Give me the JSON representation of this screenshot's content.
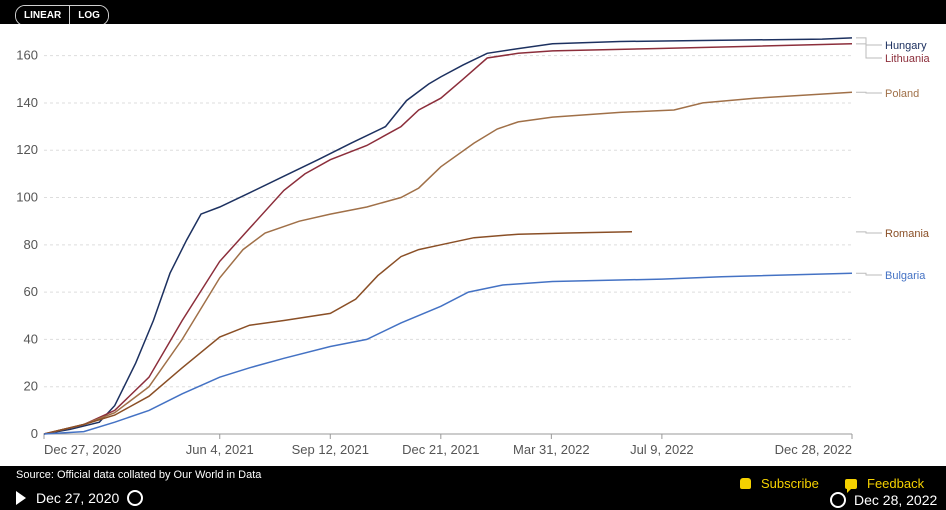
{
  "controls": {
    "linear_label": "LINEAR",
    "log_label": "LOG"
  },
  "footer": {
    "source": "Source: Official data collated by Our World in Data",
    "start_date": "Dec 27, 2020",
    "end_date": "Dec 28, 2022",
    "subscribe_label": "Subscribe",
    "feedback_label": "Feedback"
  },
  "chart_data": {
    "type": "line",
    "title": "",
    "xlabel": "",
    "ylabel": "",
    "ylim": [
      0,
      170
    ],
    "yticks": [
      0,
      20,
      40,
      60,
      80,
      100,
      120,
      140,
      160
    ],
    "xtick_labels": [
      "Dec 27, 2020",
      "Jun 4, 2021",
      "Sep 12, 2021",
      "Dec 21, 2021",
      "Mar 31, 2022",
      "Jul 9, 2022",
      "Dec 28, 2022"
    ],
    "xtick_dates": [
      "2020-12-27",
      "2021-06-04",
      "2021-09-12",
      "2021-12-21",
      "2022-03-31",
      "2022-07-09",
      "2022-12-28"
    ],
    "xlim": [
      "2020-12-27",
      "2022-12-28"
    ],
    "grid": true,
    "legend": "right",
    "series": [
      {
        "name": "Hungary",
        "color": "#1d3160",
        "points": [
          [
            "2020-12-27",
            0
          ],
          [
            "2021-01-20",
            2
          ],
          [
            "2021-02-15",
            5
          ],
          [
            "2021-03-01",
            12
          ],
          [
            "2021-03-20",
            30
          ],
          [
            "2021-04-05",
            48
          ],
          [
            "2021-04-20",
            68
          ],
          [
            "2021-05-05",
            82
          ],
          [
            "2021-05-18",
            93
          ],
          [
            "2021-06-04",
            96
          ],
          [
            "2021-07-01",
            102
          ],
          [
            "2021-08-01",
            109
          ],
          [
            "2021-09-01",
            116
          ],
          [
            "2021-10-01",
            123
          ],
          [
            "2021-11-01",
            130
          ],
          [
            "2021-11-20",
            141
          ],
          [
            "2021-12-10",
            148
          ],
          [
            "2021-12-21",
            151
          ],
          [
            "2022-01-10",
            156
          ],
          [
            "2022-02-01",
            161
          ],
          [
            "2022-03-01",
            163
          ],
          [
            "2022-04-01",
            165
          ],
          [
            "2022-06-01",
            166
          ],
          [
            "2022-09-01",
            166.5
          ],
          [
            "2022-12-01",
            167
          ],
          [
            "2022-12-28",
            167.5
          ]
        ]
      },
      {
        "name": "Lithuania",
        "color": "#8c2e3b",
        "points": [
          [
            "2020-12-27",
            0
          ],
          [
            "2021-02-01",
            4
          ],
          [
            "2021-03-01",
            10
          ],
          [
            "2021-04-01",
            24
          ],
          [
            "2021-05-01",
            48
          ],
          [
            "2021-06-04",
            73
          ],
          [
            "2021-07-01",
            87
          ],
          [
            "2021-08-01",
            103
          ],
          [
            "2021-08-20",
            110
          ],
          [
            "2021-09-12",
            116
          ],
          [
            "2021-10-15",
            122
          ],
          [
            "2021-11-15",
            130
          ],
          [
            "2021-12-01",
            137
          ],
          [
            "2021-12-21",
            142
          ],
          [
            "2022-01-10",
            150
          ],
          [
            "2022-02-01",
            159
          ],
          [
            "2022-03-01",
            161
          ],
          [
            "2022-04-01",
            162
          ],
          [
            "2022-07-01",
            163
          ],
          [
            "2022-10-01",
            164
          ],
          [
            "2022-12-28",
            165
          ]
        ]
      },
      {
        "name": "Poland",
        "color": "#a07048",
        "points": [
          [
            "2020-12-27",
            0
          ],
          [
            "2021-02-01",
            4
          ],
          [
            "2021-03-01",
            9
          ],
          [
            "2021-04-01",
            20
          ],
          [
            "2021-05-01",
            40
          ],
          [
            "2021-06-04",
            66
          ],
          [
            "2021-06-25",
            78
          ],
          [
            "2021-07-15",
            85
          ],
          [
            "2021-08-15",
            90
          ],
          [
            "2021-09-12",
            93
          ],
          [
            "2021-10-15",
            96
          ],
          [
            "2021-11-15",
            100
          ],
          [
            "2021-12-01",
            104
          ],
          [
            "2021-12-21",
            113
          ],
          [
            "2022-01-20",
            123
          ],
          [
            "2022-02-10",
            129
          ],
          [
            "2022-03-01",
            132
          ],
          [
            "2022-04-01",
            134
          ],
          [
            "2022-06-01",
            136
          ],
          [
            "2022-07-20",
            137
          ],
          [
            "2022-08-15",
            140
          ],
          [
            "2022-10-01",
            142
          ],
          [
            "2022-12-28",
            144.5
          ]
        ]
      },
      {
        "name": "Romania",
        "color": "#8a4f26",
        "points": [
          [
            "2020-12-27",
            0
          ],
          [
            "2021-02-01",
            4
          ],
          [
            "2021-03-01",
            8
          ],
          [
            "2021-04-01",
            16
          ],
          [
            "2021-05-01",
            28
          ],
          [
            "2021-06-04",
            41
          ],
          [
            "2021-07-01",
            46
          ],
          [
            "2021-08-01",
            48
          ],
          [
            "2021-09-12",
            51
          ],
          [
            "2021-10-05",
            57
          ],
          [
            "2021-10-25",
            67
          ],
          [
            "2021-11-15",
            75
          ],
          [
            "2021-12-01",
            78
          ],
          [
            "2021-12-21",
            80
          ],
          [
            "2022-01-20",
            83
          ],
          [
            "2022-03-01",
            84.5
          ],
          [
            "2022-04-15",
            85
          ],
          [
            "2022-06-12",
            85.5
          ]
        ]
      },
      {
        "name": "Bulgaria",
        "color": "#4472c4",
        "points": [
          [
            "2020-12-27",
            0
          ],
          [
            "2021-02-01",
            1
          ],
          [
            "2021-03-01",
            5
          ],
          [
            "2021-04-01",
            10
          ],
          [
            "2021-05-01",
            17
          ],
          [
            "2021-06-04",
            24
          ],
          [
            "2021-07-01",
            28
          ],
          [
            "2021-08-01",
            32
          ],
          [
            "2021-09-12",
            37
          ],
          [
            "2021-10-15",
            40
          ],
          [
            "2021-11-15",
            47
          ],
          [
            "2021-12-21",
            54
          ],
          [
            "2022-01-15",
            60
          ],
          [
            "2022-02-15",
            63
          ],
          [
            "2022-04-01",
            64.5
          ],
          [
            "2022-07-09",
            65.5
          ],
          [
            "2022-09-01",
            66.5
          ],
          [
            "2022-12-28",
            68
          ]
        ]
      }
    ]
  }
}
